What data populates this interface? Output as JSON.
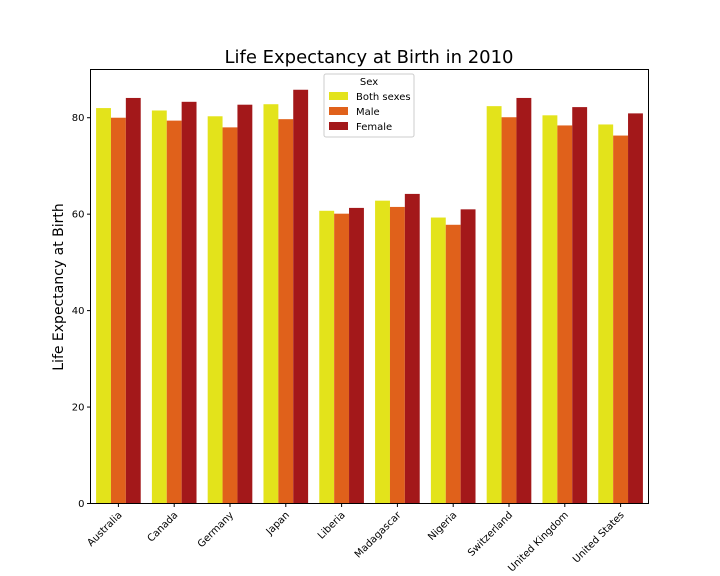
{
  "chart_data": {
    "type": "bar",
    "title": "Life Expectancy at Birth in 2010",
    "xlabel": "",
    "ylabel": "Life Expectancy at Birth",
    "ylim": [
      0,
      90
    ],
    "yticks": [
      0,
      20,
      40,
      60,
      80
    ],
    "grid": false,
    "legend": {
      "title": "Sex",
      "placement": "top-center"
    },
    "categories": [
      "Australia",
      "Canada",
      "Germany",
      "Japan",
      "Liberia",
      "Madagascar",
      "Nigeria",
      "Switzerland",
      "United Kingdom",
      "United States"
    ],
    "series": [
      {
        "name": "Both sexes",
        "color": "#e3e31b",
        "values": [
          82.0,
          81.5,
          80.3,
          82.8,
          60.7,
          62.8,
          59.3,
          82.4,
          80.5,
          78.6
        ]
      },
      {
        "name": "Male",
        "color": "#e0611b",
        "values": [
          80.0,
          79.4,
          78.0,
          79.7,
          60.1,
          61.5,
          57.8,
          80.1,
          78.4,
          76.3
        ]
      },
      {
        "name": "Female",
        "color": "#a3181a",
        "values": [
          84.1,
          83.3,
          82.7,
          85.8,
          61.3,
          64.2,
          61.0,
          84.1,
          82.2,
          80.9
        ]
      }
    ]
  }
}
